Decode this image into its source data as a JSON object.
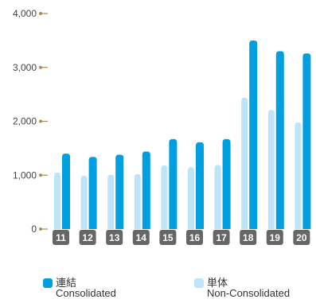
{
  "chart_data": {
    "type": "bar",
    "categories": [
      "11",
      "12",
      "13",
      "14",
      "15",
      "16",
      "17",
      "18",
      "19",
      "20"
    ],
    "series": [
      {
        "name": "単体 Non-Consolidated",
        "color": "#bfe3f7",
        "values": [
          1050,
          990,
          1010,
          1020,
          1180,
          1150,
          1190,
          2440,
          2210,
          1980
        ]
      },
      {
        "name": "連結 Consolidated",
        "color": "#00a0e0",
        "values": [
          1400,
          1340,
          1380,
          1440,
          1670,
          1610,
          1670,
          3500,
          3300,
          3260
        ]
      }
    ],
    "y_ticks": [
      "4,000",
      "3,000",
      "2,000",
      "1,000",
      "0"
    ],
    "ylim": [
      0,
      4000
    ],
    "category_badge_color": "#666666",
    "grid": false
  },
  "legend": {
    "consolidated": {
      "jp": "連結",
      "en": "Consolidated",
      "color": "#00a0e0"
    },
    "non_consolidated": {
      "jp": "単体",
      "en": "Non-Consolidated",
      "color": "#bfe3f7"
    }
  }
}
